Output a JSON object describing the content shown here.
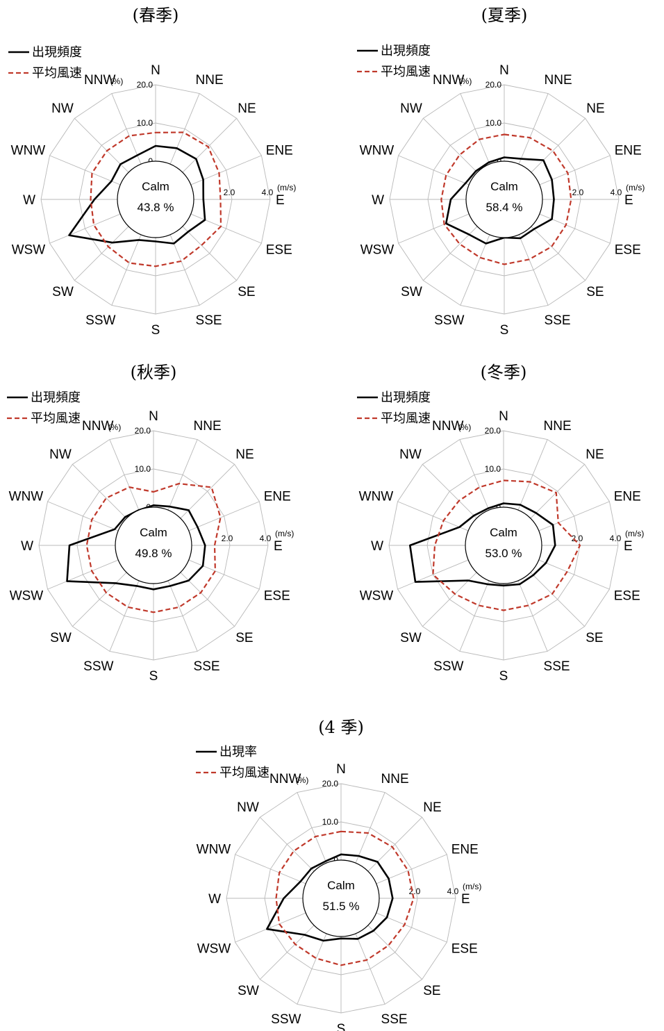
{
  "chart_data": [
    {
      "type": "radar",
      "title": "(春季)",
      "directions": [
        "N",
        "NNE",
        "NE",
        "ENE",
        "E",
        "ESE",
        "SE",
        "SSE",
        "S",
        "SSW",
        "SW",
        "WSW",
        "W",
        "WNW",
        "NW",
        "NNW"
      ],
      "legend": [
        "出現頻度",
        "平均風速"
      ],
      "legend_placement": "top-left",
      "freq_unit": "(%)",
      "speed_unit": "(m/s)",
      "freq_ticks": [
        "20.0",
        "10.0",
        "0"
      ],
      "speed_ticks": [
        "0",
        "2.0",
        "4.0"
      ],
      "calm_label": "Calm",
      "calm_value": "43.8 %",
      "series": [
        {
          "name": "出現頻度",
          "unit": "%",
          "values": [
            4.0,
            4.5,
            5.0,
            3.5,
            2.5,
            4.0,
            2.0,
            2.5,
            1.0,
            1.5,
            6.0,
            14.5,
            6.0,
            2.5,
            3.0,
            2.5
          ]
        },
        {
          "name": "平均風速",
          "unit": "m/s",
          "values": [
            1.5,
            1.8,
            1.9,
            1.6,
            1.4,
            1.7,
            1.4,
            1.5,
            1.5,
            1.6,
            1.5,
            1.5,
            1.4,
            1.6,
            1.6,
            1.6
          ]
        }
      ],
      "freq_range": [
        0,
        20
      ],
      "speed_range": [
        0,
        4
      ]
    },
    {
      "type": "radar",
      "title": "(夏季)",
      "directions": [
        "N",
        "NNE",
        "NE",
        "ENE",
        "E",
        "ESE",
        "SE",
        "SSE",
        "S",
        "SSW",
        "SW",
        "WSW",
        "W",
        "WNW",
        "NW",
        "NNW"
      ],
      "legend": [
        "出現頻度",
        "平均風速"
      ],
      "legend_placement": "top-left",
      "freq_unit": "(%)",
      "speed_unit": "(m/s)",
      "freq_ticks": [
        "20.0",
        "10.0",
        "0"
      ],
      "speed_ticks": [
        "0",
        "2.0",
        "4.0"
      ],
      "calm_label": "Calm",
      "calm_value": "58.4 %",
      "series": [
        {
          "name": "出現頻度",
          "unit": "%",
          "values": [
            1.0,
            1.5,
            4.5,
            3.5,
            3.0,
            3.5,
            1.0,
            1.0,
            0.0,
            2.5,
            3.0,
            6.5,
            4.0,
            1.0,
            0.5,
            0.5
          ]
        },
        {
          "name": "平均風速",
          "unit": "m/s",
          "values": [
            1.4,
            1.5,
            1.6,
            1.6,
            1.5,
            1.5,
            1.5,
            1.4,
            1.4,
            1.3,
            1.3,
            1.4,
            1.3,
            1.3,
            1.3,
            1.4
          ]
        }
      ],
      "freq_range": [
        0,
        20
      ],
      "speed_range": [
        0,
        4
      ]
    },
    {
      "type": "radar",
      "title": "(秋季)",
      "directions": [
        "N",
        "NNE",
        "NE",
        "ENE",
        "E",
        "ESE",
        "SE",
        "SSE",
        "S",
        "SSW",
        "SW",
        "WSW",
        "W",
        "WNW",
        "NW",
        "NNW"
      ],
      "legend": [
        "出現頻度",
        "平均風速"
      ],
      "legend_placement": "top-left",
      "freq_unit": "(%)",
      "speed_unit": "(m/s)",
      "freq_ticks": [
        "20.0",
        "10.0",
        "0"
      ],
      "speed_ticks": [
        "0",
        "2.0",
        "4.0"
      ],
      "calm_label": "Calm",
      "calm_value": "49.8 %",
      "series": [
        {
          "name": "出現頻度",
          "unit": "%",
          "values": [
            0.5,
            1.0,
            3.0,
            2.5,
            3.5,
            4.0,
            3.0,
            1.5,
            1.5,
            1.5,
            4.0,
            14.5,
            12.0,
            1.0,
            0.5,
            0.0
          ]
        },
        {
          "name": "平均風速",
          "unit": "m/s",
          "values": [
            0.8,
            1.5,
            2.3,
            1.8,
            1.2,
            1.5,
            1.5,
            1.5,
            1.5,
            1.5,
            1.5,
            1.5,
            1.5,
            1.5,
            1.5,
            1.3
          ]
        }
      ],
      "freq_range": [
        0,
        20
      ],
      "speed_range": [
        0,
        4
      ]
    },
    {
      "type": "radar",
      "title": "(冬季)",
      "directions": [
        "N",
        "NNE",
        "NE",
        "ENE",
        "E",
        "ESE",
        "SE",
        "SSE",
        "S",
        "SSW",
        "SW",
        "WSW",
        "W",
        "WNW",
        "NW",
        "NNW"
      ],
      "legend": [
        "出現頻度",
        "平均風速"
      ],
      "legend_placement": "top-left",
      "freq_unit": "(%)",
      "speed_unit": "(m/s)",
      "freq_ticks": [
        "20.0",
        "10.0",
        "0"
      ],
      "speed_ticks": [
        "0",
        "2.0",
        "4.0"
      ],
      "calm_label": "Calm",
      "calm_value": "53.0 %",
      "series": [
        {
          "name": "出現頻度",
          "unit": "%",
          "values": [
            1.0,
            1.5,
            2.0,
            4.0,
            3.5,
            2.0,
            1.0,
            1.0,
            0.5,
            1.0,
            3.0,
            15.0,
            14.5,
            2.5,
            1.0,
            0.5
          ]
        },
        {
          "name": "平均風速",
          "unit": "m/s",
          "values": [
            1.4,
            1.6,
            1.9,
            1.1,
            2.0,
            1.6,
            1.6,
            1.4,
            1.4,
            1.4,
            1.6,
            2.0,
            1.6,
            1.4,
            1.3,
            1.3
          ]
        }
      ],
      "freq_range": [
        0,
        20
      ],
      "speed_range": [
        0,
        4
      ]
    },
    {
      "type": "radar",
      "title": "(4 季)",
      "directions": [
        "N",
        "NNE",
        "NE",
        "ENE",
        "E",
        "ESE",
        "SE",
        "SSE",
        "S",
        "SSW",
        "SW",
        "WSW",
        "W",
        "WNW",
        "NW",
        "NNW"
      ],
      "legend": [
        "出現率",
        "平均風速"
      ],
      "legend_placement": "top-left",
      "freq_unit": "(%)",
      "speed_unit": "(m/s)",
      "freq_ticks": [
        "20.0",
        "10.0",
        "0"
      ],
      "speed_ticks": [
        "0",
        "2.0",
        "4.0"
      ],
      "calm_label": "Calm",
      "calm_value": "51.5 %",
      "series": [
        {
          "name": "出現率",
          "unit": "%",
          "values": [
            1.5,
            2.0,
            3.5,
            3.5,
            3.5,
            3.0,
            2.0,
            1.5,
            0.5,
            2.0,
            3.5,
            11.0,
            5.0,
            1.5,
            1.0,
            0.5
          ]
        },
        {
          "name": "平均風速",
          "unit": "m/s",
          "values": [
            1.5,
            1.7,
            1.8,
            1.8,
            1.8,
            1.6,
            1.5,
            1.5,
            1.5,
            1.4,
            1.4,
            1.5,
            1.4,
            1.5,
            1.5,
            1.5
          ]
        }
      ],
      "freq_range": [
        0,
        20
      ],
      "speed_range": [
        0,
        4
      ]
    }
  ]
}
